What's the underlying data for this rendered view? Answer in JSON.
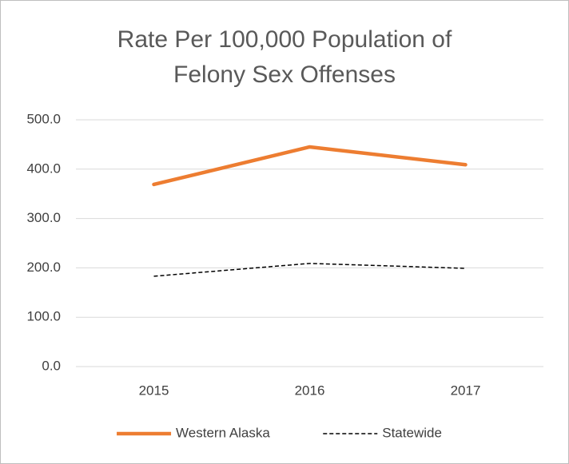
{
  "chart_data": {
    "type": "line",
    "title": "Rate Per 100,000 Population of Felony Sex Offenses",
    "categories": [
      "2015",
      "2016",
      "2017"
    ],
    "series": [
      {
        "name": "Western Alaska",
        "color": "#ed7d31",
        "dashed": false,
        "values": [
          369,
          445,
          409
        ]
      },
      {
        "name": "Statewide",
        "color": "#000000",
        "dashed": true,
        "values": [
          183,
          209,
          199
        ]
      }
    ],
    "ylim": [
      0,
      500
    ],
    "yticks": [
      {
        "value": 0,
        "label": "0.0"
      },
      {
        "value": 100,
        "label": "100.0"
      },
      {
        "value": 200,
        "label": "200.0"
      },
      {
        "value": 300,
        "label": "300.0"
      },
      {
        "value": 400,
        "label": "400.0"
      },
      {
        "value": 500,
        "label": "500.0"
      }
    ],
    "grid": true,
    "legend": "bottom"
  }
}
